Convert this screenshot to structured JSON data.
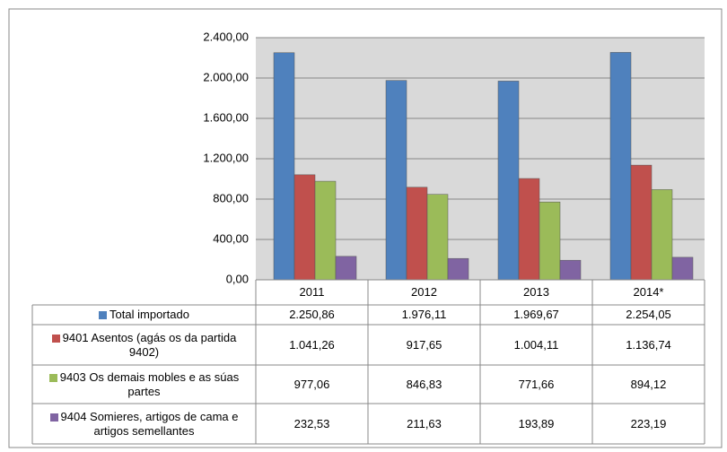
{
  "chart_data": {
    "type": "bar",
    "categories": [
      "2011",
      "2012",
      "2013",
      "2014*"
    ],
    "series": [
      {
        "name": "Total importado",
        "color": "#4f81bd",
        "values": [
          2250.86,
          1976.11,
          1969.67,
          2254.05
        ],
        "value_labels": [
          "2.250,86",
          "1.976,11",
          "1.969,67",
          "2.254,05"
        ]
      },
      {
        "name": "9401 Asentos (agás os da partida 9402)",
        "color": "#c0504d",
        "values": [
          1041.26,
          917.65,
          1004.11,
          1136.74
        ],
        "value_labels": [
          "1.041,26",
          "917,65",
          "1.004,11",
          "1.136,74"
        ]
      },
      {
        "name": "9403 Os demais mobles e as súas partes",
        "color": "#9bbb59",
        "values": [
          977.06,
          846.83,
          771.66,
          894.12
        ],
        "value_labels": [
          "977,06",
          "846,83",
          "771,66",
          "894,12"
        ]
      },
      {
        "name": "9404 Somieres, artigos de cama e artigos semellantes",
        "color": "#8064a2",
        "values": [
          232.53,
          211.63,
          193.89,
          223.19
        ],
        "value_labels": [
          "232,53",
          "211,63",
          "193,89",
          "223,19"
        ]
      }
    ],
    "ylim": [
      0,
      2400
    ],
    "yticks": [
      {
        "value": 0,
        "label": "0,00"
      },
      {
        "value": 400,
        "label": "400,00"
      },
      {
        "value": 800,
        "label": "800,00"
      },
      {
        "value": 1200,
        "label": "1.200,00"
      },
      {
        "value": 1600,
        "label": "1.600,00"
      },
      {
        "value": 2000,
        "label": "2.000,00"
      },
      {
        "value": 2400,
        "label": "2.400,00"
      }
    ],
    "grid": true
  }
}
